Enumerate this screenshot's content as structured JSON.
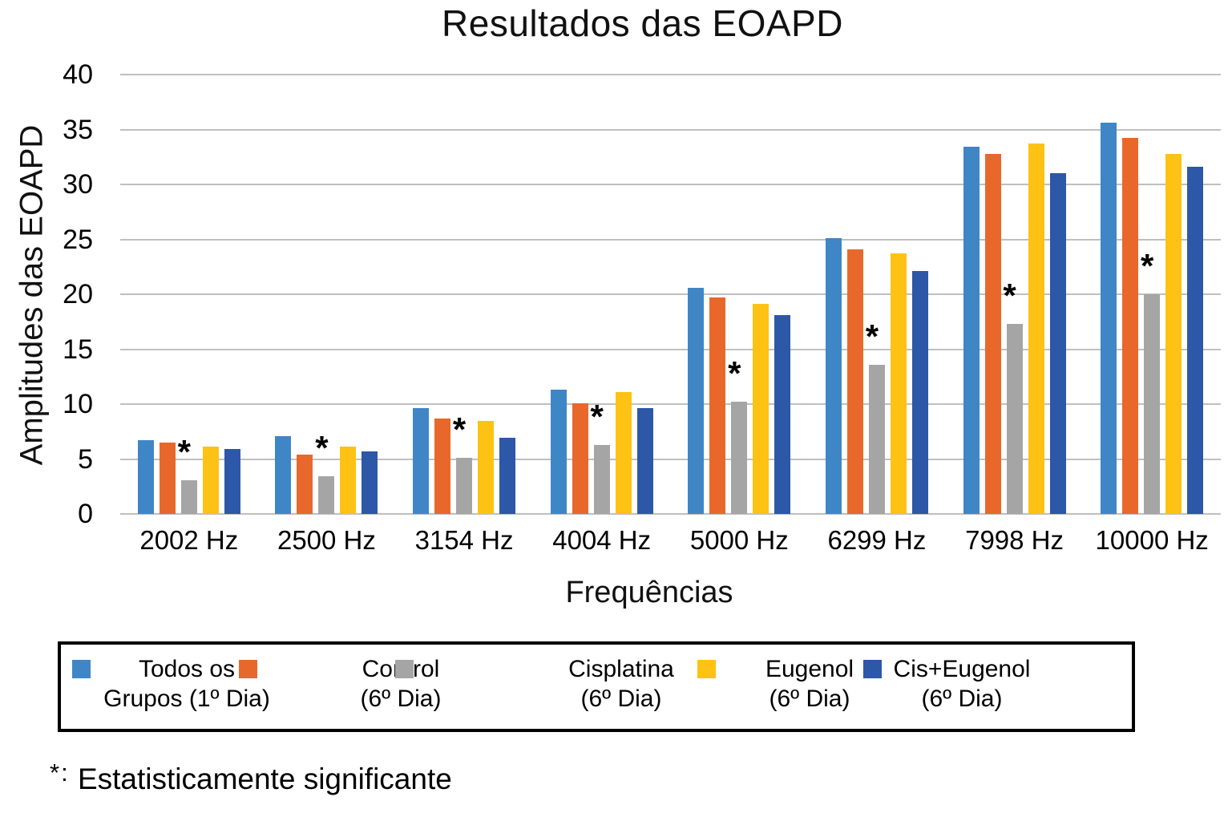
{
  "title": "Resultados das EOAPD",
  "footnote": {
    "marker": "*:",
    "text": " Estatisticamente significante"
  },
  "colors": {
    "grid": "#bfbfbf",
    "legend_border": "#000000",
    "text": "#111111"
  },
  "chart_data": {
    "type": "bar",
    "title": "Resultados das EOAPD",
    "xlabel": "Frequências",
    "ylabel": "Amplitudes das EOAPD",
    "ylim": [
      0,
      40
    ],
    "yticks": [
      0,
      5,
      10,
      15,
      20,
      25,
      30,
      35,
      40
    ],
    "grid": true,
    "legend_position": "bottom",
    "categories": [
      "2002 Hz",
      "2500 Hz",
      "3154 Hz",
      "4004 Hz",
      "5000 Hz",
      "6299 Hz",
      "7998 Hz",
      "10000 Hz"
    ],
    "series": [
      {
        "name": "Todos os Grupos (1º Dia)",
        "legend_lines": [
          "Todos os",
          "Grupos (1º Dia)"
        ],
        "color": "#3F86C7",
        "values": [
          6.7,
          7.1,
          9.6,
          11.3,
          20.6,
          25.1,
          33.4,
          35.6
        ]
      },
      {
        "name": "Control (6º Dia)",
        "legend_lines": [
          "Control",
          "(6º Dia)"
        ],
        "color": "#E8682B",
        "values": [
          6.5,
          5.4,
          8.7,
          10.1,
          19.7,
          24.1,
          32.8,
          34.2
        ]
      },
      {
        "name": "Cisplatina (6º Dia)",
        "legend_lines": [
          "Cisplatina",
          "(6º Dia)"
        ],
        "color": "#A5A5A5",
        "values": [
          3.1,
          3.4,
          5.1,
          6.3,
          10.2,
          13.6,
          17.3,
          20.0
        ],
        "starred": [
          true,
          true,
          true,
          true,
          true,
          true,
          true,
          true
        ]
      },
      {
        "name": "Eugenol (6º Dia)",
        "legend_lines": [
          "Eugenol",
          "(6º Dia)"
        ],
        "color": "#FDC213",
        "values": [
          6.1,
          6.1,
          8.5,
          11.1,
          19.1,
          23.7,
          33.7,
          32.8
        ]
      },
      {
        "name": "Cis+Eugenol (6º Dia)",
        "legend_lines": [
          "Cis+Eugenol",
          "(6º Dia)"
        ],
        "color": "#2D57A7",
        "values": [
          5.9,
          5.7,
          6.9,
          9.6,
          18.1,
          22.1,
          31.0,
          31.6
        ]
      }
    ],
    "annotations": {
      "symbol": "*",
      "meaning": "Estatisticamente significante",
      "applies_to_series": "Cisplatina (6º Dia)"
    }
  }
}
